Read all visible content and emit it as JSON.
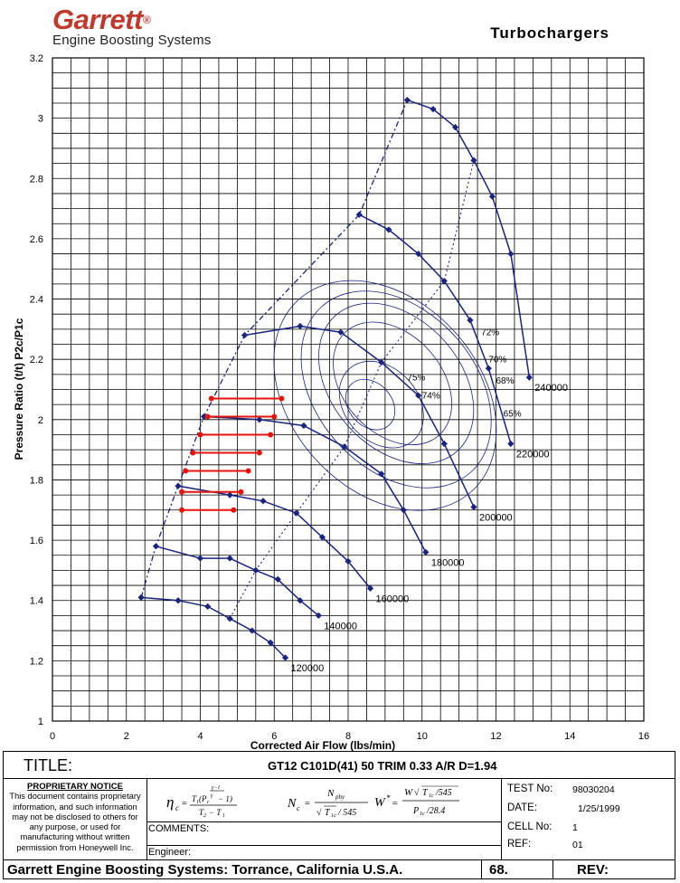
{
  "header": {
    "brand": "Garrett",
    "brand_mark": "®",
    "brand_sub": "Engine Boosting Systems",
    "doc_title": "Turbochargers"
  },
  "chart_data": {
    "type": "line",
    "title": "",
    "xlabel": "Corrected Air Flow (lbs/min)",
    "ylabel": "Pressure Ratio (t/t) P2c/P1c",
    "xlim": [
      0,
      16
    ],
    "ylim": [
      1,
      3.2
    ],
    "xticks": [
      0,
      2,
      4,
      6,
      8,
      10,
      12,
      14,
      16
    ],
    "yticks": [
      1,
      1.2,
      1.4,
      1.6,
      1.8,
      2,
      2.2,
      2.4,
      2.6,
      2.8,
      3,
      3.2
    ],
    "minor_grid_x": 0.5,
    "minor_grid_y": 0.05,
    "grid": true,
    "colors": {
      "curves": "#1a237e",
      "markers": "#1a237e",
      "operating": "#e8120c",
      "grid": "#000000"
    },
    "speed_lines": [
      {
        "label": "120000",
        "points": [
          [
            2.4,
            1.41
          ],
          [
            3.4,
            1.4
          ],
          [
            4.2,
            1.38
          ],
          [
            4.8,
            1.34
          ],
          [
            5.4,
            1.3
          ],
          [
            5.9,
            1.26
          ],
          [
            6.3,
            1.21
          ]
        ]
      },
      {
        "label": "140000",
        "points": [
          [
            2.8,
            1.58
          ],
          [
            4.0,
            1.54
          ],
          [
            4.8,
            1.54
          ],
          [
            5.5,
            1.5
          ],
          [
            6.1,
            1.47
          ],
          [
            6.7,
            1.4
          ],
          [
            7.2,
            1.35
          ]
        ]
      },
      {
        "label": "160000",
        "points": [
          [
            3.4,
            1.78
          ],
          [
            4.8,
            1.75
          ],
          [
            5.7,
            1.73
          ],
          [
            6.6,
            1.69
          ],
          [
            7.3,
            1.61
          ],
          [
            8.0,
            1.53
          ],
          [
            8.6,
            1.44
          ]
        ]
      },
      {
        "label": "180000",
        "points": [
          [
            4.1,
            2.01
          ],
          [
            5.6,
            2.0
          ],
          [
            6.8,
            1.98
          ],
          [
            7.9,
            1.91
          ],
          [
            8.9,
            1.82
          ],
          [
            9.5,
            1.7
          ],
          [
            10.1,
            1.56
          ]
        ]
      },
      {
        "label": "200000",
        "points": [
          [
            5.2,
            2.28
          ],
          [
            6.7,
            2.31
          ],
          [
            7.8,
            2.29
          ],
          [
            8.9,
            2.19
          ],
          [
            9.9,
            2.08
          ],
          [
            10.6,
            1.92
          ],
          [
            11.4,
            1.71
          ]
        ]
      },
      {
        "label": "220000",
        "points": [
          [
            8.3,
            2.68
          ],
          [
            9.1,
            2.63
          ],
          [
            9.9,
            2.55
          ],
          [
            10.6,
            2.46
          ],
          [
            11.3,
            2.33
          ],
          [
            11.8,
            2.17
          ],
          [
            12.4,
            1.92
          ]
        ]
      },
      {
        "label": "240000",
        "points": [
          [
            9.6,
            3.06
          ],
          [
            10.3,
            3.03
          ],
          [
            10.9,
            2.97
          ],
          [
            11.4,
            2.86
          ],
          [
            11.9,
            2.74
          ],
          [
            12.4,
            2.55
          ],
          [
            12.9,
            2.14
          ]
        ]
      }
    ],
    "efficiency_labels": [
      "75%",
      "74%",
      "72%",
      "70%",
      "68%",
      "65%"
    ],
    "operating_lines": [
      {
        "pr": 2.07,
        "x": [
          4.3,
          6.2
        ]
      },
      {
        "pr": 2.01,
        "x": [
          4.2,
          6.0
        ]
      },
      {
        "pr": 1.95,
        "x": [
          4.0,
          5.9
        ]
      },
      {
        "pr": 1.89,
        "x": [
          3.8,
          5.6
        ]
      },
      {
        "pr": 1.83,
        "x": [
          3.6,
          5.3
        ]
      },
      {
        "pr": 1.76,
        "x": [
          3.5,
          5.1
        ]
      },
      {
        "pr": 1.7,
        "x": [
          3.5,
          4.9
        ]
      }
    ]
  },
  "footer": {
    "title_label": "TITLE:",
    "title_value": "GT12 C101D(41) 50 TRIM 0.33 A/R D=1.94",
    "notice_heading": "PROPRIETARY NOTICE",
    "notice_text": "This document contains proprietary information, and such information may not be disclosed to others for any purpose, or used for manufacturing without written permission from Honeywell Inc.",
    "comments_label": "COMMENTS:",
    "engineer_label": "Engineer:",
    "test_no_label": "TEST No:",
    "test_no": "98030204",
    "date_label": "DATE:",
    "date": "1/25/1999",
    "cell_label": "CELL No:",
    "cell": "1",
    "ref_label": "REF:",
    "ref": "01",
    "company": "Garrett Engine Boosting Systems: Torrance, California U.S.A.",
    "page_no": "68.",
    "rev_label": "REV:"
  }
}
